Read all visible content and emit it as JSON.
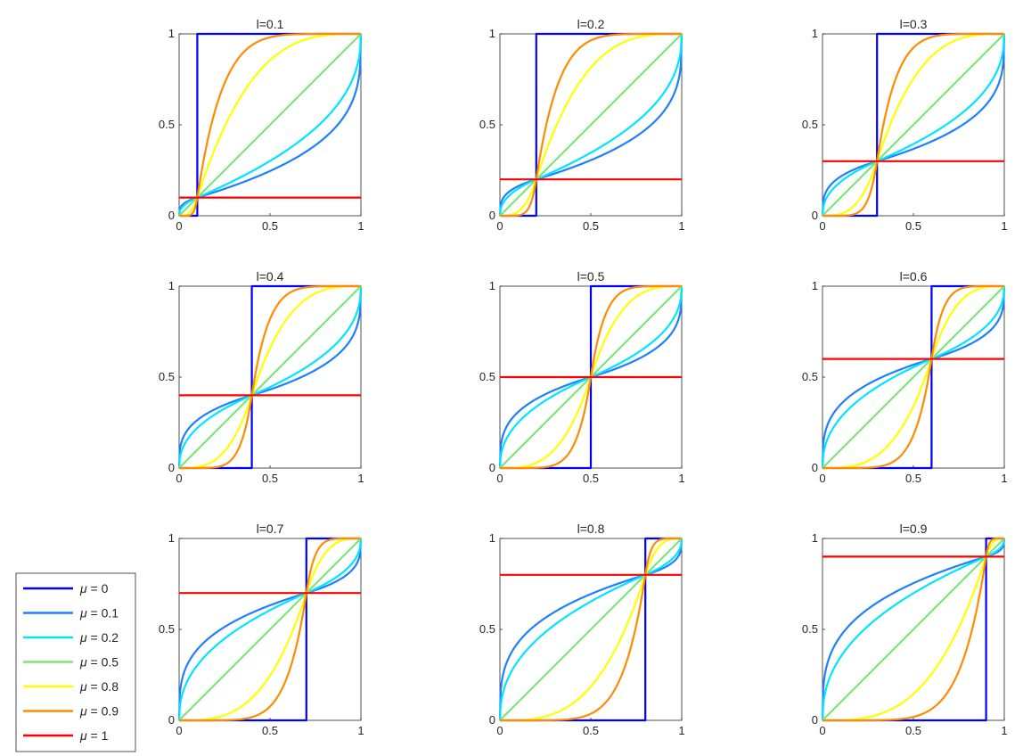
{
  "legend": {
    "placement": "bottom-left",
    "entries": [
      {
        "symbol": "μ",
        "text": " = 0",
        "color": "#0000ff"
      },
      {
        "symbol": "μ",
        "text": " = 0.1",
        "color": "#1e80ff"
      },
      {
        "symbol": "μ",
        "text": " = 0.2",
        "color": "#00e5ff"
      },
      {
        "symbol": "μ",
        "text": " = 0.5",
        "color": "#7be67b"
      },
      {
        "symbol": "μ",
        "text": " = 0.8",
        "color": "#ffff00"
      },
      {
        "symbol": "μ",
        "text": " = 0.9",
        "color": "#ff8c00"
      },
      {
        "symbol": "μ",
        "text": " = 1",
        "color": "#ff0000"
      }
    ]
  },
  "chart_data": [
    {
      "type": "line",
      "title": "l=0.1",
      "l": 0.1,
      "xlim": [
        0,
        1
      ],
      "ylim": [
        0,
        1
      ],
      "grid": false,
      "xticks": [
        "0",
        "0.5",
        "1"
      ],
      "yticks": [
        "0",
        "0.5",
        "1"
      ],
      "mu": [
        0,
        0.1,
        0.2,
        0.5,
        0.8,
        0.9,
        1
      ]
    },
    {
      "type": "line",
      "title": "l=0.2",
      "l": 0.2,
      "xlim": [
        0,
        1
      ],
      "ylim": [
        0,
        1
      ],
      "grid": false,
      "xticks": [
        "0",
        "0.5",
        "1"
      ],
      "yticks": [
        "0",
        "0.5",
        "1"
      ],
      "mu": [
        0,
        0.1,
        0.2,
        0.5,
        0.8,
        0.9,
        1
      ]
    },
    {
      "type": "line",
      "title": "l=0.3",
      "l": 0.3,
      "xlim": [
        0,
        1
      ],
      "ylim": [
        0,
        1
      ],
      "grid": false,
      "xticks": [
        "0",
        "0.5",
        "1"
      ],
      "yticks": [
        "0",
        "0.5",
        "1"
      ],
      "mu": [
        0,
        0.1,
        0.2,
        0.5,
        0.8,
        0.9,
        1
      ]
    },
    {
      "type": "line",
      "title": "l=0.4",
      "l": 0.4,
      "xlim": [
        0,
        1
      ],
      "ylim": [
        0,
        1
      ],
      "grid": false,
      "xticks": [
        "0",
        "0.5",
        "1"
      ],
      "yticks": [
        "0",
        "0.5",
        "1"
      ],
      "mu": [
        0,
        0.1,
        0.2,
        0.5,
        0.8,
        0.9,
        1
      ]
    },
    {
      "type": "line",
      "title": "l=0.5",
      "l": 0.5,
      "xlim": [
        0,
        1
      ],
      "ylim": [
        0,
        1
      ],
      "grid": false,
      "xticks": [
        "0",
        "0.5",
        "1"
      ],
      "yticks": [
        "0",
        "0.5",
        "1"
      ],
      "mu": [
        0,
        0.1,
        0.2,
        0.5,
        0.8,
        0.9,
        1
      ]
    },
    {
      "type": "line",
      "title": "l=0.6",
      "l": 0.6,
      "xlim": [
        0,
        1
      ],
      "ylim": [
        0,
        1
      ],
      "grid": false,
      "xticks": [
        "0",
        "0.5",
        "1"
      ],
      "yticks": [
        "0",
        "0.5",
        "1"
      ],
      "mu": [
        0,
        0.1,
        0.2,
        0.5,
        0.8,
        0.9,
        1
      ]
    },
    {
      "type": "line",
      "title": "l=0.7",
      "l": 0.7,
      "xlim": [
        0,
        1
      ],
      "ylim": [
        0,
        1
      ],
      "grid": false,
      "xticks": [
        "0",
        "0.5",
        "1"
      ],
      "yticks": [
        "0",
        "0.5",
        "1"
      ],
      "mu": [
        0,
        0.1,
        0.2,
        0.5,
        0.8,
        0.9,
        1
      ]
    },
    {
      "type": "line",
      "title": "l=0.8",
      "l": 0.8,
      "xlim": [
        0,
        1
      ],
      "ylim": [
        0,
        1
      ],
      "grid": false,
      "xticks": [
        "0",
        "0.5",
        "1"
      ],
      "yticks": [
        "0",
        "0.5",
        "1"
      ],
      "mu": [
        0,
        0.1,
        0.2,
        0.5,
        0.8,
        0.9,
        1
      ]
    },
    {
      "type": "line",
      "title": "l=0.9",
      "l": 0.9,
      "xlim": [
        0,
        1
      ],
      "ylim": [
        0,
        1
      ],
      "grid": false,
      "xticks": [
        "0",
        "0.5",
        "1"
      ],
      "yticks": [
        "0",
        "0.5",
        "1"
      ],
      "mu": [
        0,
        0.1,
        0.2,
        0.5,
        0.8,
        0.9,
        1
      ]
    }
  ]
}
